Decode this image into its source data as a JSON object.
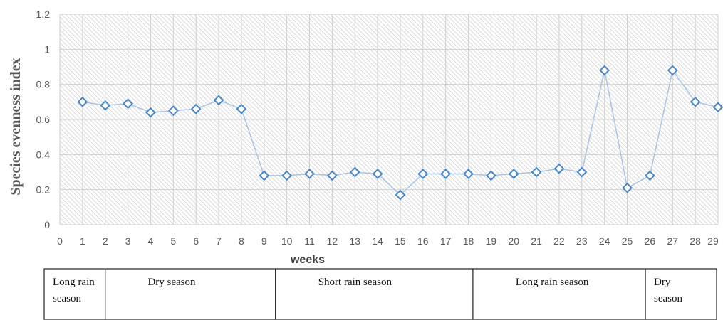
{
  "chart_data": {
    "type": "line",
    "title": "",
    "xlabel": "weeks",
    "ylabel": "Species evenness index",
    "xlim": [
      0,
      29
    ],
    "ylim": [
      0,
      1.2
    ],
    "x_ticks": [
      0,
      1,
      2,
      3,
      4,
      5,
      6,
      7,
      8,
      9,
      10,
      11,
      12,
      13,
      14,
      15,
      16,
      17,
      18,
      19,
      20,
      21,
      22,
      23,
      24,
      25,
      26,
      27,
      28,
      29
    ],
    "y_ticks": [
      0,
      0.2,
      0.4,
      0.6,
      0.8,
      1,
      1.2
    ],
    "y_tick_labels": [
      "0",
      "0.2",
      "0.4",
      "0.6",
      "0.8",
      "1",
      "1.2"
    ],
    "grid": true,
    "marker": "diamond",
    "colors": {
      "line": "#a9c4e4",
      "marker": "#4a86c5",
      "grid": "#cfcfcf"
    },
    "series": [
      {
        "x": [
          1,
          2,
          3,
          4,
          5,
          6,
          7,
          8,
          9,
          10,
          11,
          12,
          13,
          14,
          15,
          16,
          17,
          18,
          19,
          20,
          21,
          22,
          23,
          24,
          25,
          26,
          27,
          28,
          29
        ],
        "values": [
          0.7,
          0.68,
          0.69,
          0.64,
          0.65,
          0.66,
          0.71,
          0.66,
          0.28,
          0.28,
          0.29,
          0.28,
          0.3,
          0.29,
          0.17,
          0.29,
          0.29,
          0.29,
          0.28,
          0.29,
          0.3,
          0.32,
          0.3,
          0.88,
          0.21,
          0.28,
          0.88,
          0.7,
          0.67
        ]
      }
    ]
  },
  "seasons": [
    {
      "label_lines": [
        "Long rain",
        "season"
      ],
      "start_week": 0,
      "end_week": 2
    },
    {
      "label_lines": [
        "Dry season"
      ],
      "start_week": 2,
      "end_week": 9.5
    },
    {
      "label_lines": [
        "Short rain season"
      ],
      "start_week": 9.5,
      "end_week": 18.2
    },
    {
      "label_lines": [
        "Long rain season"
      ],
      "start_week": 18.2,
      "end_week": 25.8
    },
    {
      "label_lines": [
        "Dry",
        "season"
      ],
      "start_week": 25.8,
      "end_week": 29.2
    }
  ]
}
